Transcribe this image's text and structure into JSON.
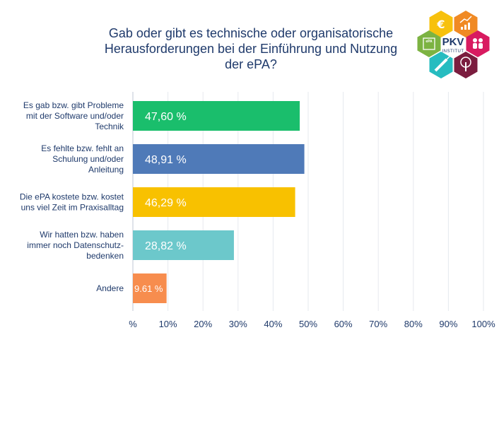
{
  "title_lines": [
    "Gab oder gibt es technische oder organisatorische",
    "Herausforderungen bei der Einführung und Nutzung",
    "der ePA?"
  ],
  "logo": {
    "name": "PKV",
    "subtitle": "INSTITUT",
    "hexagon_colors": [
      "#f7c10d",
      "#f08a24",
      "#d81b60",
      "#7b1d3f",
      "#26bcc0",
      "#7cb342"
    ],
    "hexagon_icons": [
      "euro-icon",
      "rising-chart-icon",
      "people-icon",
      "tree-icon",
      "syringe-icon",
      "epa-card-icon"
    ],
    "card_icon_text": "ePA"
  },
  "chart_data": {
    "type": "bar",
    "orientation": "horizontal",
    "categories": [
      [
        "Es gab bzw. gibt Probleme",
        "mit der Software und/oder",
        "Technik"
      ],
      [
        "Es fehlte bzw. fehlt an",
        "Schulung und/oder",
        "Anleitung"
      ],
      [
        "Die ePA kostete bzw. kostet",
        "uns viel Zeit im Praxisalltag"
      ],
      [
        "Wir hatten bzw. haben",
        "immer noch Datenschutz-",
        "bedenken"
      ],
      [
        "Andere"
      ]
    ],
    "values": [
      47.6,
      48.91,
      46.29,
      28.82,
      9.61
    ],
    "data_labels": [
      "47,60 %",
      "48,91 %",
      "46,29 %",
      "28,82 %",
      "9.61 %"
    ],
    "colors": [
      "#1abe6c",
      "#4f7ab8",
      "#f8c100",
      "#6cc8cb",
      "#f78d4e"
    ],
    "xlim": [
      0,
      100
    ],
    "tick_values": [
      0,
      10,
      20,
      30,
      40,
      50,
      60,
      70,
      80,
      90,
      100
    ],
    "tick_labels": [
      "%",
      "10%",
      "20%",
      "30%",
      "40%",
      "50%",
      "60%",
      "70%",
      "80%",
      "90%",
      "100%"
    ],
    "grid": true,
    "xlabel": "",
    "ylabel": ""
  }
}
